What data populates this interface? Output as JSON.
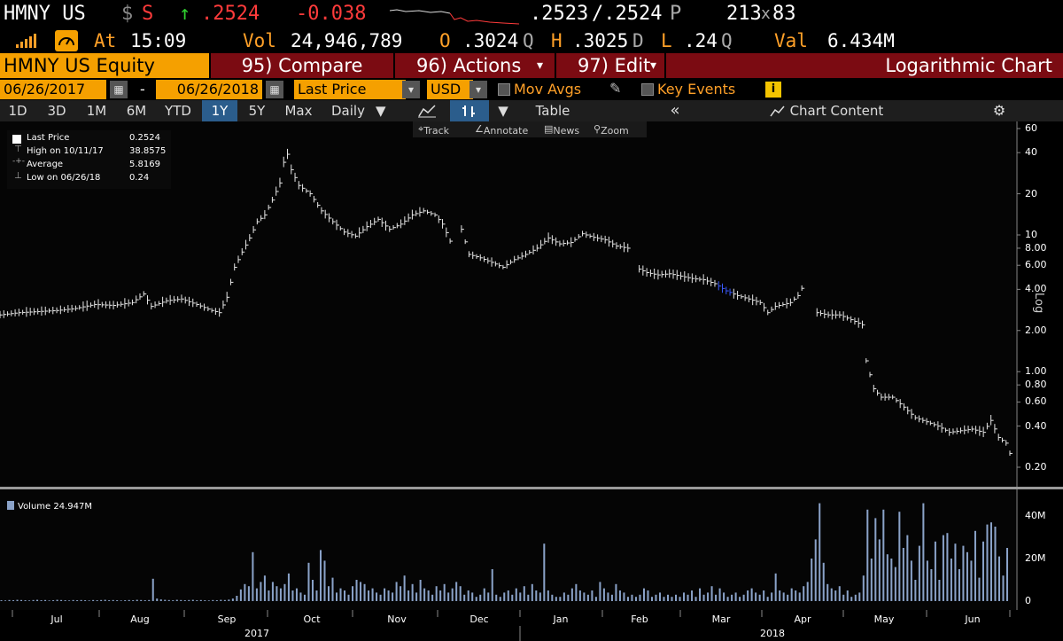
{
  "header": {
    "ticker": "HMNY US",
    "dollar": "$",
    "s_flag": "S",
    "up_arrow": "↑",
    "last": ".2524",
    "change": "-0.038",
    "bid": ".2523",
    "ask": "/.2524",
    "ask_src": "P",
    "size": "213",
    "size_x": "x",
    "size_ask": "83"
  },
  "quote_line": {
    "at_label": "At",
    "time": "15:09",
    "vol_label": "Vol",
    "volume": "24,946,789",
    "open_label": "O",
    "open": ".3024",
    "open_src": "Q",
    "high_label": "H",
    "high": ".3025",
    "high_src": "D",
    "low_label": "L",
    "low": ".24",
    "low_src": "Q",
    "val_label": "Val",
    "value": "6.434M"
  },
  "menu": {
    "security": "HMNY US Equity",
    "compare": "95) Compare",
    "actions": "96) Actions",
    "actions_caret": "▾",
    "edit": "97) Edit",
    "edit_caret": "▾",
    "chart_title": "Logarithmic Chart"
  },
  "date_bar": {
    "start": "06/26/2017",
    "dash": "-",
    "end": "06/26/2018",
    "field": "Last Price",
    "currency": "USD",
    "mov_avgs": "Mov Avgs",
    "key_events": "Key Events",
    "info_icon_label": "i"
  },
  "toolbar": {
    "periods": [
      "1D",
      "3D",
      "1M",
      "6M",
      "YTD",
      "1Y",
      "5Y",
      "Max"
    ],
    "selected_period": "1Y",
    "frequency": "Daily",
    "table": "Table",
    "chart_content": "Chart Content",
    "collapse": "«"
  },
  "subtools": {
    "track": "Track",
    "annotate": "Annotate",
    "news": "News",
    "zoom": "Zoom"
  },
  "legend": {
    "items": [
      {
        "label": "Last Price",
        "value": "0.2524"
      },
      {
        "label": "High on 10/11/17",
        "value": "38.8575"
      },
      {
        "label": "Average",
        "value": "5.8169"
      },
      {
        "label": "Low on 06/26/18",
        "value": "0.24"
      }
    ]
  },
  "volume_legend": {
    "label": "Volume",
    "value": "24.947M"
  },
  "axis_side_label": "Log",
  "chart_data": {
    "type": "line",
    "scale": "log",
    "price_ticks": [
      "60",
      "40",
      "20",
      "10",
      "8.00",
      "6.00",
      "4.00",
      "2.00",
      "1.00",
      "0.80",
      "0.60",
      "0.40",
      "0.20"
    ],
    "volume_ticks": [
      "40M",
      "20M",
      "0"
    ],
    "x_months": [
      "Jul",
      "Aug",
      "Sep",
      "Oct",
      "Nov",
      "Dec",
      "Jan",
      "Feb",
      "Mar",
      "Apr",
      "May",
      "Jun"
    ],
    "years": [
      "2017",
      "2018"
    ],
    "series_price": [
      [
        0,
        2.6
      ],
      [
        5,
        2.7
      ],
      [
        10,
        2.75
      ],
      [
        15,
        2.8
      ],
      [
        20,
        2.9
      ],
      [
        25,
        3.1
      ],
      [
        30,
        3.05
      ],
      [
        35,
        3.2
      ],
      [
        38,
        3.7
      ],
      [
        40,
        3.0
      ],
      [
        44,
        3.3
      ],
      [
        48,
        3.4
      ],
      [
        52,
        3.1
      ],
      [
        56,
        2.8
      ],
      [
        58,
        2.7
      ],
      [
        60,
        3.5
      ],
      [
        62,
        5.8
      ],
      [
        64,
        7.5
      ],
      [
        66,
        9.5
      ],
      [
        68,
        12.5
      ],
      [
        70,
        14
      ],
      [
        72,
        18
      ],
      [
        74,
        24
      ],
      [
        75,
        34
      ],
      [
        76,
        38.9
      ],
      [
        77,
        30
      ],
      [
        79,
        23
      ],
      [
        82,
        20
      ],
      [
        85,
        15
      ],
      [
        88,
        12.5
      ],
      [
        91,
        10.5
      ],
      [
        94,
        9.8
      ],
      [
        97,
        11.5
      ],
      [
        100,
        13
      ],
      [
        103,
        11
      ],
      [
        106,
        12
      ],
      [
        109,
        14
      ],
      [
        112,
        15
      ],
      [
        115,
        14
      ],
      [
        117,
        12
      ],
      [
        119,
        9.0
      ],
      [
        121,
        8.5
      ],
      [
        122,
        11
      ],
      [
        124,
        7.2
      ],
      [
        127,
        6.8
      ],
      [
        130,
        6.3
      ],
      [
        133,
        5.8
      ],
      [
        136,
        6.6
      ],
      [
        139,
        7.2
      ],
      [
        142,
        8.0
      ],
      [
        145,
        9.5
      ],
      [
        148,
        8.6
      ],
      [
        151,
        8.8
      ],
      [
        154,
        10.2
      ],
      [
        157,
        9.6
      ],
      [
        160,
        9.2
      ],
      [
        163,
        8.3
      ],
      [
        166,
        8.0
      ],
      [
        168,
        5.8
      ],
      [
        171,
        5.3
      ],
      [
        174,
        5.1
      ],
      [
        177,
        5.2
      ],
      [
        180,
        5.0
      ],
      [
        183,
        4.8
      ],
      [
        186,
        4.7
      ],
      [
        189,
        4.4
      ],
      [
        192,
        3.9
      ],
      [
        195,
        3.6
      ],
      [
        198,
        3.4
      ],
      [
        201,
        3.2
      ],
      [
        203,
        2.7
      ],
      [
        205,
        3.0
      ],
      [
        207,
        3.1
      ],
      [
        209,
        3.2
      ],
      [
        211,
        3.6
      ],
      [
        213,
        4.6
      ],
      [
        214,
        4.0
      ],
      [
        216,
        2.7
      ],
      [
        219,
        2.6
      ],
      [
        222,
        2.6
      ],
      [
        225,
        2.4
      ],
      [
        228,
        2.2
      ],
      [
        229,
        1.2
      ],
      [
        231,
        0.75
      ],
      [
        233,
        0.65
      ],
      [
        236,
        0.65
      ],
      [
        239,
        0.55
      ],
      [
        242,
        0.46
      ],
      [
        245,
        0.43
      ],
      [
        248,
        0.4
      ],
      [
        251,
        0.36
      ],
      [
        254,
        0.37
      ],
      [
        257,
        0.38
      ],
      [
        260,
        0.36
      ],
      [
        262,
        0.44
      ],
      [
        264,
        0.33
      ],
      [
        266,
        0.3
      ],
      [
        267,
        0.2524
      ]
    ],
    "series_volume_millions": [
      0.4,
      0.3,
      0.5,
      0.4,
      0.6,
      0.5,
      0.4,
      0.3,
      0.5,
      0.6,
      0.4,
      0.5,
      0.3,
      0.4,
      0.6,
      0.5,
      0.4,
      0.3,
      0.5,
      0.4,
      0.5,
      0.4,
      0.3,
      0.5,
      0.4,
      0.5,
      0.6,
      0.4,
      0.5,
      0.4,
      0.3,
      0.4,
      0.5,
      0.4,
      0.6,
      0.5,
      0.4,
      0.5,
      10.5,
      1.2,
      0.8,
      0.6,
      0.5,
      0.4,
      0.6,
      0.5,
      0.4,
      0.5,
      0.6,
      0.4,
      0.5,
      0.4,
      0.3,
      0.5,
      0.4,
      0.6,
      0.5,
      0.7,
      1.2,
      2.5,
      5.5,
      8,
      7,
      23,
      6,
      9,
      12,
      5,
      9,
      7,
      6,
      8,
      13,
      5,
      6,
      4,
      3,
      18,
      10,
      5,
      24,
      19,
      7,
      11,
      4,
      6,
      5,
      3,
      7,
      10,
      9,
      8,
      5,
      6,
      4,
      3,
      6,
      5,
      4,
      9,
      7,
      12,
      5,
      8,
      4,
      10,
      6,
      5,
      3,
      7,
      5,
      8,
      4,
      6,
      9,
      7,
      3,
      5,
      4,
      2,
      3,
      6,
      4,
      15,
      3,
      2,
      4,
      5,
      3,
      6,
      4,
      7,
      3,
      8,
      5,
      4,
      27,
      5,
      3,
      2,
      2,
      4,
      3,
      6,
      8,
      5,
      4,
      3,
      5,
      2,
      9,
      6,
      4,
      3,
      8,
      5,
      4,
      2,
      3,
      2,
      3,
      6,
      5,
      2,
      3,
      4,
      2,
      3,
      2,
      3,
      2,
      4,
      3,
      5,
      2,
      6,
      3,
      4,
      7,
      3,
      6,
      4,
      2,
      3,
      4,
      2,
      3,
      5,
      6,
      4,
      3,
      5,
      2,
      4,
      13,
      5,
      4,
      3,
      6,
      5,
      4,
      7,
      9,
      20,
      29,
      46,
      18,
      8,
      6,
      5,
      7,
      3,
      5,
      2,
      3,
      4,
      12,
      43,
      20,
      39,
      29,
      43,
      22,
      20,
      16,
      42,
      25,
      31,
      19,
      10,
      26,
      46,
      19,
      15,
      28,
      10,
      31,
      32,
      20,
      27,
      15,
      26,
      23,
      19,
      33,
      11,
      28,
      36,
      37,
      35,
      21,
      12,
      25
    ]
  }
}
